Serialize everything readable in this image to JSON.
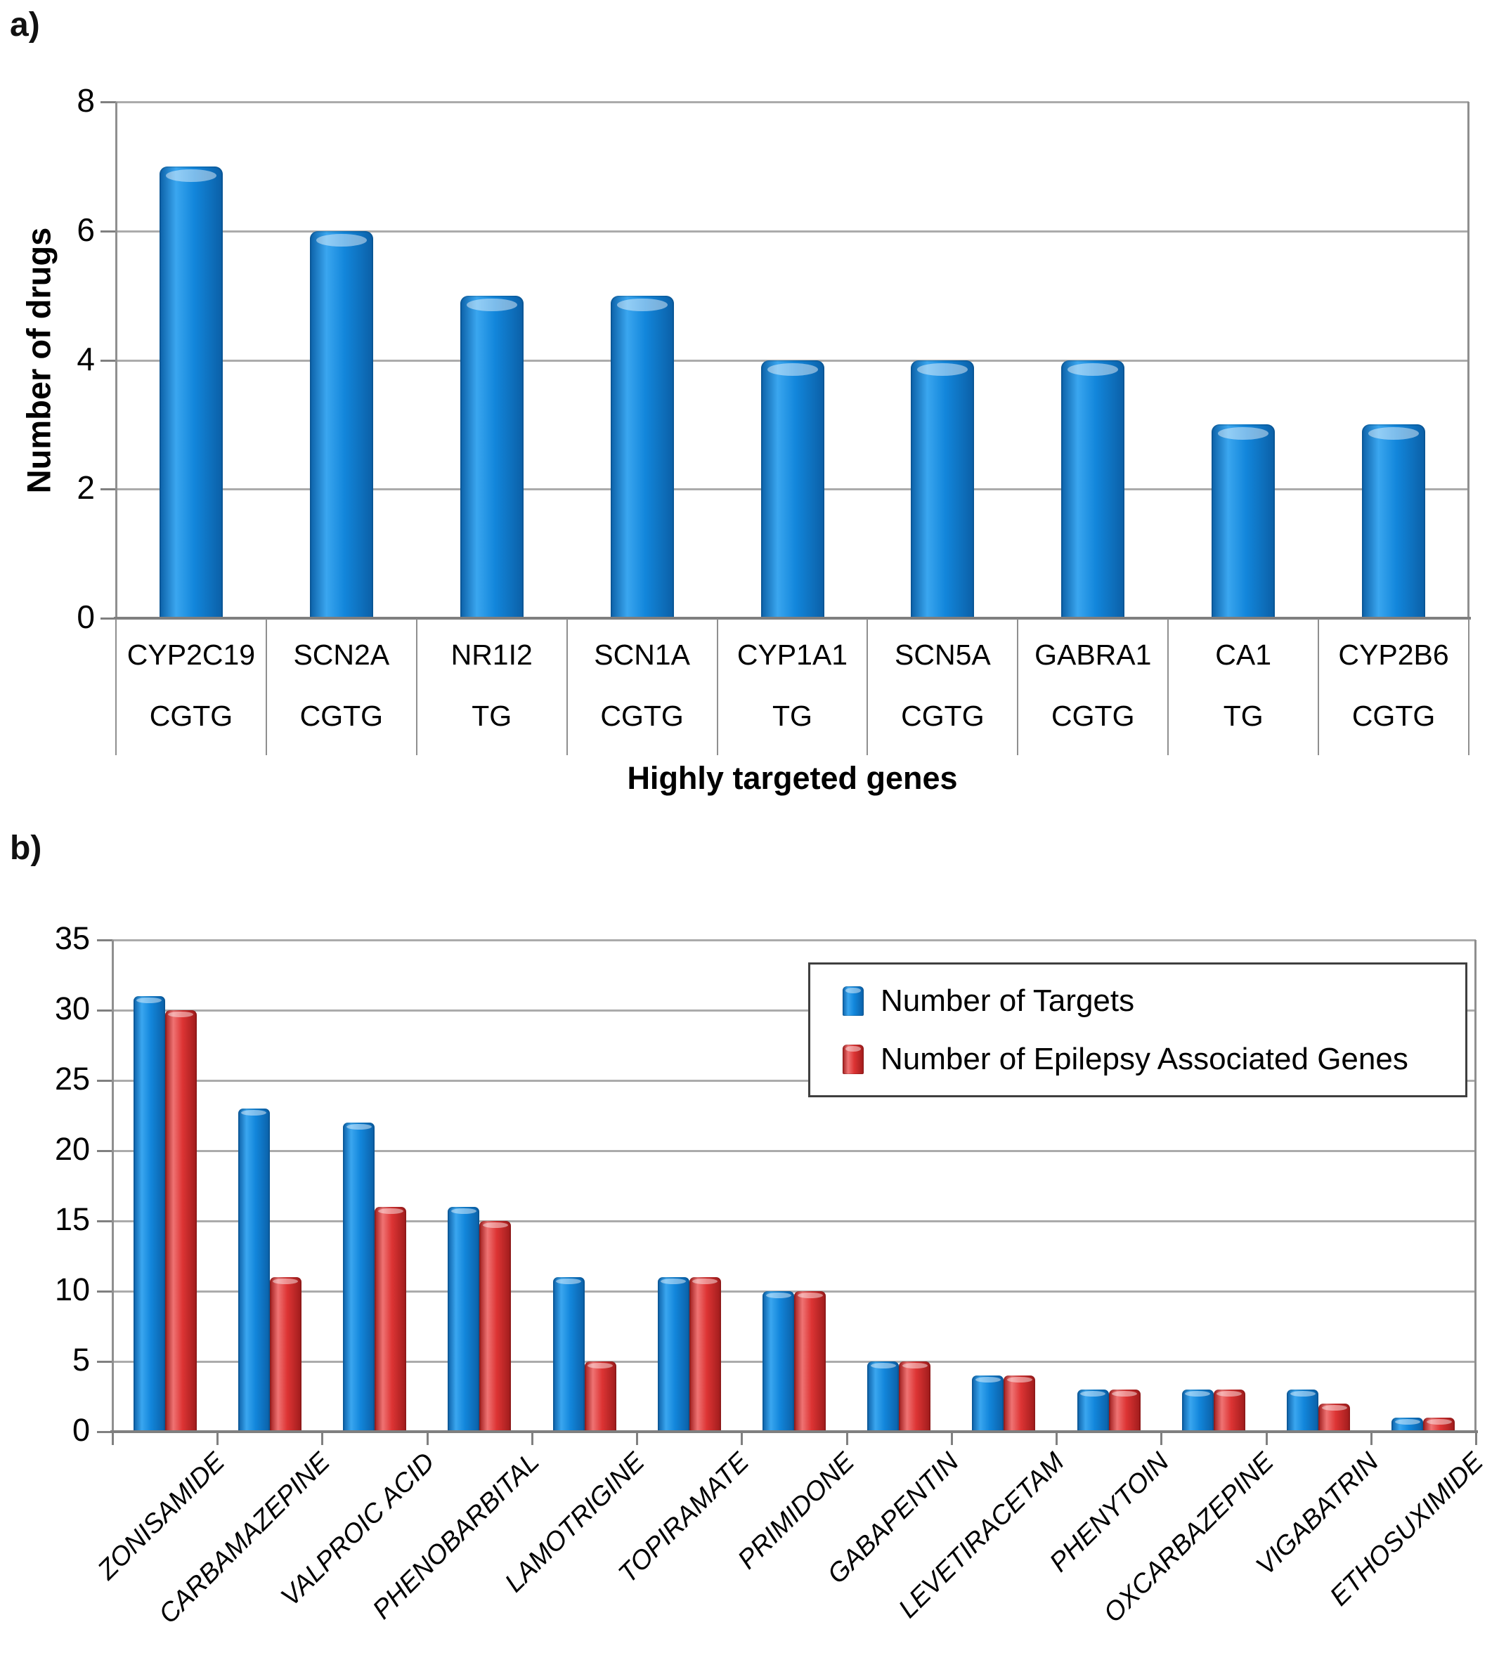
{
  "chart_data": [
    {
      "id": "a",
      "type": "bar",
      "panel_label": "a)",
      "xlabel": "Highly targeted genes",
      "ylabel": "Number of drugs",
      "ylim": [
        0,
        8
      ],
      "ytick_step": 2,
      "yticks": [
        8,
        6,
        4,
        2,
        0
      ],
      "grid": true,
      "categories": [
        "CYP2C19",
        "SCN2A",
        "NR1I2",
        "SCN1A",
        "CYP1A1",
        "SCN5A",
        "GABRA1",
        "CA1",
        "CYP2B6"
      ],
      "motifs": [
        "CGTG",
        "CGTG",
        "TG",
        "CGTG",
        "TG",
        "CGTG",
        "CGTG",
        "TG",
        "CGTG"
      ],
      "values": [
        7,
        6,
        5,
        5,
        4,
        4,
        4,
        3,
        3
      ],
      "bar_color": "#1286db"
    },
    {
      "id": "b",
      "type": "bar",
      "panel_label": "b)",
      "xlabel": "",
      "ylabel": "",
      "ylim": [
        0,
        35
      ],
      "ytick_step": 5,
      "yticks": [
        35,
        30,
        25,
        20,
        15,
        10,
        5,
        0
      ],
      "grid": true,
      "legend_position": "top-right-inside",
      "categories": [
        "ZONISAMIDE",
        "CARBAMAZEPINE",
        "VALPROIC ACID",
        "PHENOBARBITAL",
        "LAMOTRIGINE",
        "TOPIRAMATE",
        "PRIMIDONE",
        "GABAPENTIN",
        "LEVETIRACETAM",
        "PHENYTOIN",
        "OXCARBAZEPINE",
        "VIGABATRIN",
        "ETHOSUXIMIDE"
      ],
      "series": [
        {
          "name": "Number of Targets",
          "color": "#1286db",
          "values": [
            31,
            23,
            22,
            16,
            11,
            11,
            10,
            5,
            4,
            3,
            3,
            3,
            1
          ]
        },
        {
          "name": "Number of Epilepsy Associated Genes",
          "color": "#dd3434",
          "values": [
            30,
            11,
            16,
            15,
            5,
            11,
            10,
            5,
            4,
            3,
            3,
            2,
            1
          ]
        }
      ]
    }
  ],
  "colors": {
    "blue": {
      "main": "#1286db",
      "light": "#3aa6ef",
      "dark": "#0b5fa6"
    },
    "red": {
      "main": "#dd3434",
      "light": "#ef7373",
      "dark": "#9e1b1b"
    },
    "gridline": "#ababab",
    "axis": "#7f7f7f"
  }
}
